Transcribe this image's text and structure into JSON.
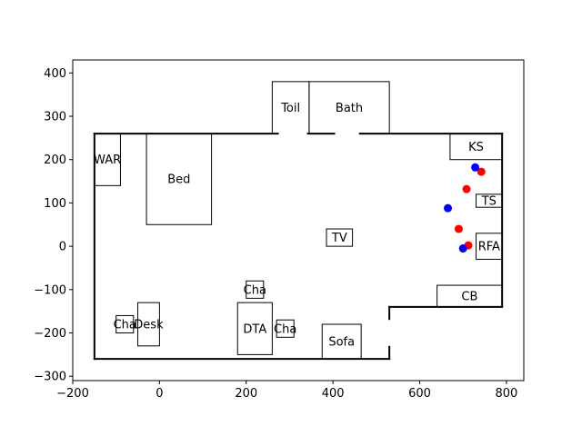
{
  "chart_data": {
    "type": "scatter",
    "title": "",
    "xlabel": "",
    "ylabel": "",
    "xlim": [
      -200,
      840
    ],
    "ylim": [
      -310,
      430
    ],
    "grid": false,
    "xticks": [
      -200,
      0,
      200,
      400,
      600,
      800
    ],
    "yticks": [
      -300,
      -200,
      -100,
      0,
      100,
      200,
      300,
      400
    ],
    "walls": [
      [
        [
          -150,
          260
        ],
        [
          790,
          260
        ]
      ],
      [
        [
          790,
          260
        ],
        [
          790,
          -140
        ]
      ],
      [
        [
          790,
          -140
        ],
        [
          530,
          -140
        ]
      ],
      [
        [
          530,
          -140
        ],
        [
          530,
          -170
        ]
      ],
      [
        [
          530,
          -230
        ],
        [
          530,
          -260
        ]
      ],
      [
        [
          530,
          -260
        ],
        [
          -150,
          -260
        ]
      ],
      [
        [
          -150,
          -260
        ],
        [
          -150,
          260
        ]
      ]
    ],
    "doors": [
      [
        [
          275,
          260
        ],
        [
          340,
          260
        ]
      ],
      [
        [
          405,
          260
        ],
        [
          460,
          260
        ]
      ],
      [
        [
          530,
          -170
        ],
        [
          530,
          -230
        ]
      ]
    ],
    "furniture": [
      {
        "label": "Toil",
        "x0": 260,
        "y0": 260,
        "x1": 345,
        "y1": 380
      },
      {
        "label": "Bath",
        "x0": 345,
        "y0": 260,
        "x1": 530,
        "y1": 380
      },
      {
        "label": "WAR",
        "x0": -150,
        "y0": 140,
        "x1": -90,
        "y1": 260
      },
      {
        "label": "Bed",
        "x0": -30,
        "y0": 50,
        "x1": 120,
        "y1": 260
      },
      {
        "label": "KS",
        "x0": 670,
        "y0": 200,
        "x1": 790,
        "y1": 260
      },
      {
        "label": "TS",
        "x0": 730,
        "y0": 90,
        "x1": 790,
        "y1": 120
      },
      {
        "label": "TV",
        "x0": 385,
        "y0": 0,
        "x1": 445,
        "y1": 40
      },
      {
        "label": "RFA",
        "x0": 730,
        "y0": -30,
        "x1": 790,
        "y1": 30
      },
      {
        "label": "Cha",
        "x0": 200,
        "y0": -120,
        "x1": 240,
        "y1": -80
      },
      {
        "label": "CB",
        "x0": 640,
        "y0": -140,
        "x1": 790,
        "y1": -90
      },
      {
        "label": "DTA",
        "x0": 180,
        "y0": -250,
        "x1": 260,
        "y1": -130
      },
      {
        "label": "Desk",
        "x0": -50,
        "y0": -230,
        "x1": 0,
        "y1": -130
      },
      {
        "label": "Cha",
        "x0": -100,
        "y0": -200,
        "x1": -60,
        "y1": -160
      },
      {
        "label": "Cha",
        "x0": 270,
        "y0": -210,
        "x1": 310,
        "y1": -170
      },
      {
        "label": "Sofa",
        "x0": 375,
        "y0": -260,
        "x1": 465,
        "y1": -180
      }
    ],
    "series": [
      {
        "color": "#ff0000",
        "points": [
          [
            742,
            172
          ],
          [
            708,
            132
          ],
          [
            690,
            40
          ],
          [
            712,
            2
          ]
        ]
      },
      {
        "color": "#0000ff",
        "points": [
          [
            728,
            182
          ],
          [
            665,
            88
          ],
          [
            700,
            -5
          ]
        ]
      }
    ]
  }
}
